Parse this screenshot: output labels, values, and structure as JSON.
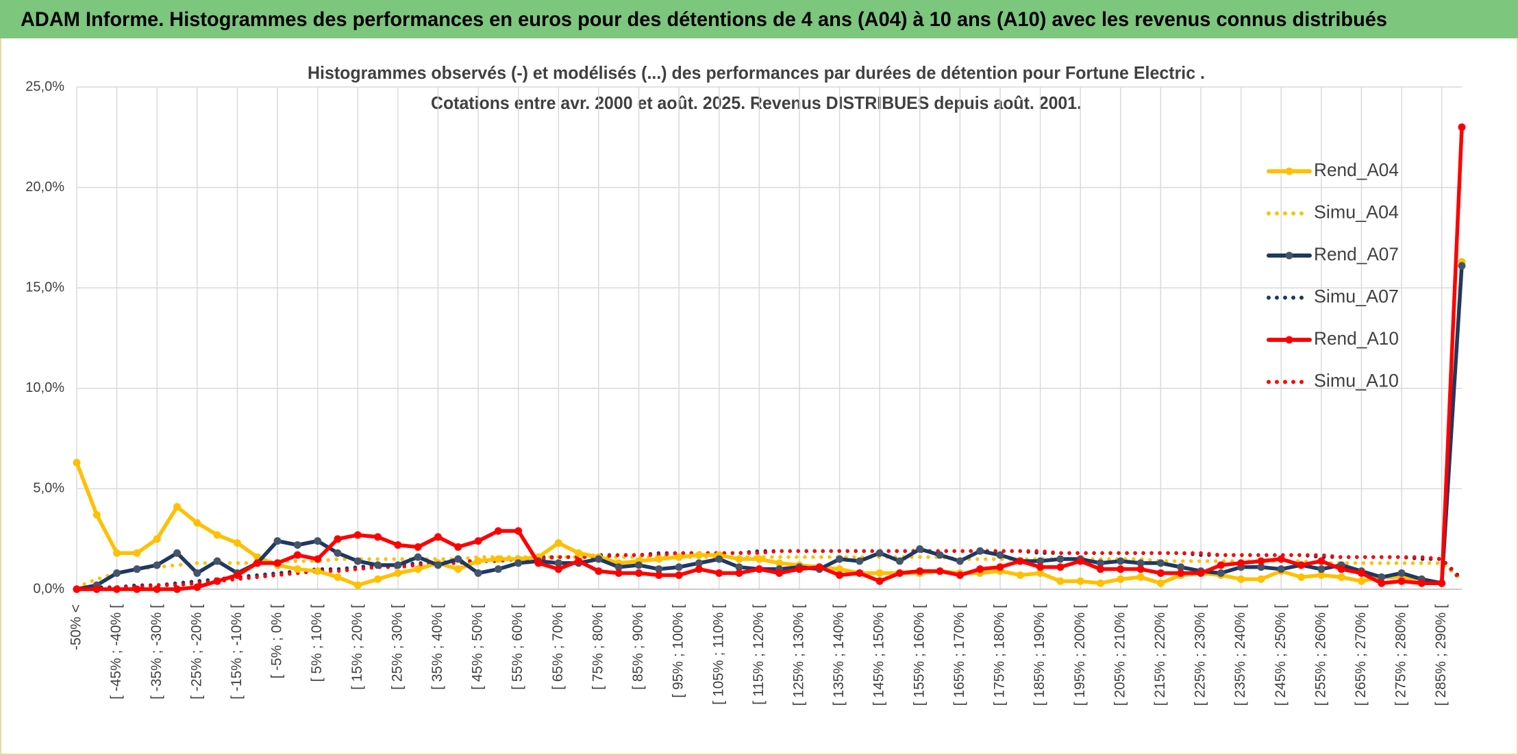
{
  "header": {
    "title": "ADAM Informe. Histogrammes des performances en euros pour des détentions de 4 ans (A04) à 10 ans (A10) avec les revenus connus distribués"
  },
  "chart_data": {
    "type": "line",
    "title": "Histogrammes observés (-) et modélisés (...) des performances par durées de détention pour Fortune Electric .",
    "subtitle": "Cotations entre avr. 2000 et août. 2025. Revenus DISTRIBUES depuis août. 2001.",
    "categories": [
      "-50% <",
      null,
      "[ -45% ; -40% [",
      null,
      "[ -35% ; -30% [",
      null,
      "[ -25% ; -20% [",
      null,
      "[ -15% ; -10% [",
      null,
      "[ -5% ; 0%  [",
      null,
      "[ 5% ; 10% [",
      null,
      "[ 15% ; 20% [",
      null,
      "[ 25% ; 30% [",
      null,
      "[ 35% ; 40% [",
      null,
      "[ 45% ; 50% [",
      null,
      "[ 55% ; 60% [",
      null,
      "[ 65% ; 70% [",
      null,
      "[ 75% ; 80% [",
      null,
      "[ 85% ; 90% [",
      null,
      "[ 95% ; 100% [",
      null,
      "[ 105% ; 110% [",
      null,
      "[ 115% ; 120% [",
      null,
      "[ 125% ; 130% [",
      null,
      "[ 135% ; 140% [",
      null,
      "[ 145% ; 150% [",
      null,
      "[ 155% ; 160% [",
      null,
      "[ 165% ; 170% [",
      null,
      "[ 175% ; 180% [",
      null,
      "[ 185% ; 190% [",
      null,
      "[ 195% ; 200% [",
      null,
      "[ 205% ; 210% [",
      null,
      "[ 215% ; 220% [",
      null,
      "[ 225% ; 230% [",
      null,
      "[ 235% ; 240% [",
      null,
      "[ 245% ; 250% [",
      null,
      "[ 255% ; 260% [",
      null,
      "[ 265% ; 270% [",
      null,
      "[ 275% ; 280% [",
      null,
      "[ 285% ; 290% [",
      null
    ],
    "ylim": [
      0,
      25
    ],
    "yticks": [
      {
        "value": 0,
        "label": "0,0%"
      },
      {
        "value": 5,
        "label": "5,0%"
      },
      {
        "value": 10,
        "label": "10,0%"
      },
      {
        "value": 15,
        "label": "15,0%"
      },
      {
        "value": 20,
        "label": "20,0%"
      },
      {
        "value": 25,
        "label": "25,0%"
      }
    ],
    "grid": true,
    "legend": "right",
    "series": [
      {
        "name": "Rend_A04",
        "color": "#FFC000",
        "style": "solid",
        "values": [
          6.3,
          3.7,
          1.8,
          1.8,
          2.5,
          4.1,
          3.3,
          2.7,
          2.3,
          1.6,
          1.2,
          1.0,
          0.9,
          0.6,
          0.2,
          0.5,
          0.8,
          1.0,
          1.3,
          1.0,
          1.4,
          1.5,
          1.5,
          1.6,
          2.3,
          1.8,
          1.6,
          1.3,
          1.4,
          1.5,
          1.6,
          1.7,
          1.7,
          1.5,
          1.5,
          1.3,
          1.2,
          1.1,
          1.0,
          0.8,
          0.8,
          0.8,
          0.8,
          0.9,
          0.8,
          0.8,
          0.9,
          0.7,
          0.8,
          0.4,
          0.4,
          0.3,
          0.5,
          0.6,
          0.3,
          0.7,
          0.8,
          0.7,
          0.5,
          0.5,
          0.9,
          0.6,
          0.7,
          0.6,
          0.4,
          0.6,
          0.6,
          0.5,
          0.3,
          16.3
        ]
      },
      {
        "name": "Simu_A04",
        "color": "#FFC000",
        "style": "dotted",
        "values": [
          0.1,
          0.5,
          0.8,
          1.0,
          1.1,
          1.2,
          1.3,
          1.3,
          1.3,
          1.3,
          1.4,
          1.4,
          1.4,
          1.5,
          1.5,
          1.5,
          1.5,
          1.5,
          1.5,
          1.5,
          1.6,
          1.6,
          1.6,
          1.6,
          1.6,
          1.6,
          1.6,
          1.6,
          1.6,
          1.6,
          1.6,
          1.6,
          1.6,
          1.6,
          1.6,
          1.6,
          1.6,
          1.6,
          1.6,
          1.6,
          1.6,
          1.6,
          1.6,
          1.6,
          1.5,
          1.5,
          1.5,
          1.5,
          1.5,
          1.5,
          1.5,
          1.5,
          1.5,
          1.5,
          1.4,
          1.4,
          1.4,
          1.4,
          1.4,
          1.4,
          1.4,
          1.4,
          1.3,
          1.3,
          1.3,
          1.3,
          1.3,
          1.3,
          1.3,
          0.5
        ]
      },
      {
        "name": "Rend_A07",
        "color": "#1F3864",
        "marker_color": "#44546A",
        "style": "solid",
        "values": [
          0,
          0.2,
          0.8,
          1.0,
          1.2,
          1.8,
          0.8,
          1.4,
          0.8,
          1.3,
          2.4,
          2.2,
          2.4,
          1.8,
          1.4,
          1.2,
          1.2,
          1.6,
          1.2,
          1.5,
          0.8,
          1.0,
          1.3,
          1.4,
          1.3,
          1.3,
          1.5,
          1.1,
          1.2,
          1.0,
          1.1,
          1.3,
          1.5,
          1.1,
          1.0,
          1.0,
          1.1,
          1.0,
          1.5,
          1.4,
          1.8,
          1.4,
          2.0,
          1.7,
          1.4,
          1.9,
          1.7,
          1.4,
          1.4,
          1.5,
          1.5,
          1.3,
          1.4,
          1.3,
          1.3,
          1.1,
          0.9,
          0.8,
          1.1,
          1.1,
          1.0,
          1.2,
          1.0,
          1.2,
          0.9,
          0.6,
          0.8,
          0.5,
          0.3,
          16.1
        ]
      },
      {
        "name": "Simu_A07",
        "color": "#1F3864",
        "style": "dotted",
        "values": [
          0,
          0.1,
          0.1,
          0.2,
          0.2,
          0.3,
          0.4,
          0.5,
          0.6,
          0.7,
          0.8,
          0.9,
          1.0,
          1.0,
          1.1,
          1.2,
          1.2,
          1.3,
          1.3,
          1.4,
          1.4,
          1.5,
          1.5,
          1.6,
          1.6,
          1.6,
          1.7,
          1.7,
          1.7,
          1.8,
          1.8,
          1.8,
          1.8,
          1.8,
          1.9,
          1.9,
          1.9,
          1.9,
          1.9,
          1.9,
          1.9,
          1.9,
          1.9,
          1.9,
          1.9,
          1.9,
          1.9,
          1.9,
          1.8,
          1.8,
          1.8,
          1.8,
          1.8,
          1.8,
          1.8,
          1.8,
          1.7,
          1.7,
          1.7,
          1.7,
          1.7,
          1.7,
          1.6,
          1.6,
          1.6,
          1.6,
          1.6,
          1.5,
          1.5,
          0.5
        ]
      },
      {
        "name": "Rend_A10",
        "color": "#FF0000",
        "style": "solid",
        "values": [
          0,
          0,
          0,
          0,
          0,
          0,
          0.1,
          0.4,
          0.7,
          1.3,
          1.3,
          1.7,
          1.5,
          2.5,
          2.7,
          2.6,
          2.2,
          2.1,
          2.6,
          2.1,
          2.4,
          2.9,
          2.9,
          1.3,
          1.0,
          1.4,
          0.9,
          0.8,
          0.8,
          0.7,
          0.7,
          1.0,
          0.8,
          0.8,
          1.0,
          0.8,
          1.0,
          1.1,
          0.7,
          0.8,
          0.4,
          0.8,
          0.9,
          0.9,
          0.7,
          1.0,
          1.1,
          1.4,
          1.1,
          1.1,
          1.4,
          1.0,
          1.0,
          1.0,
          0.8,
          0.8,
          0.8,
          1.2,
          1.3,
          1.4,
          1.5,
          1.2,
          1.4,
          1.0,
          0.8,
          0.3,
          0.4,
          0.3,
          0.3,
          23.0
        ]
      },
      {
        "name": "Simu_A10",
        "color": "#FF0000",
        "style": "dotted",
        "values": [
          0,
          0,
          0.1,
          0.1,
          0.2,
          0.2,
          0.3,
          0.4,
          0.5,
          0.6,
          0.7,
          0.8,
          0.9,
          0.9,
          1.0,
          1.1,
          1.1,
          1.2,
          1.3,
          1.3,
          1.4,
          1.4,
          1.5,
          1.5,
          1.6,
          1.6,
          1.6,
          1.7,
          1.7,
          1.7,
          1.8,
          1.8,
          1.8,
          1.8,
          1.8,
          1.9,
          1.9,
          1.9,
          1.9,
          1.9,
          1.9,
          1.9,
          1.9,
          1.9,
          1.9,
          1.9,
          1.9,
          1.9,
          1.9,
          1.8,
          1.8,
          1.8,
          1.8,
          1.8,
          1.8,
          1.8,
          1.8,
          1.7,
          1.7,
          1.7,
          1.7,
          1.7,
          1.7,
          1.6,
          1.6,
          1.6,
          1.6,
          1.6,
          1.5,
          0.4
        ]
      }
    ]
  }
}
